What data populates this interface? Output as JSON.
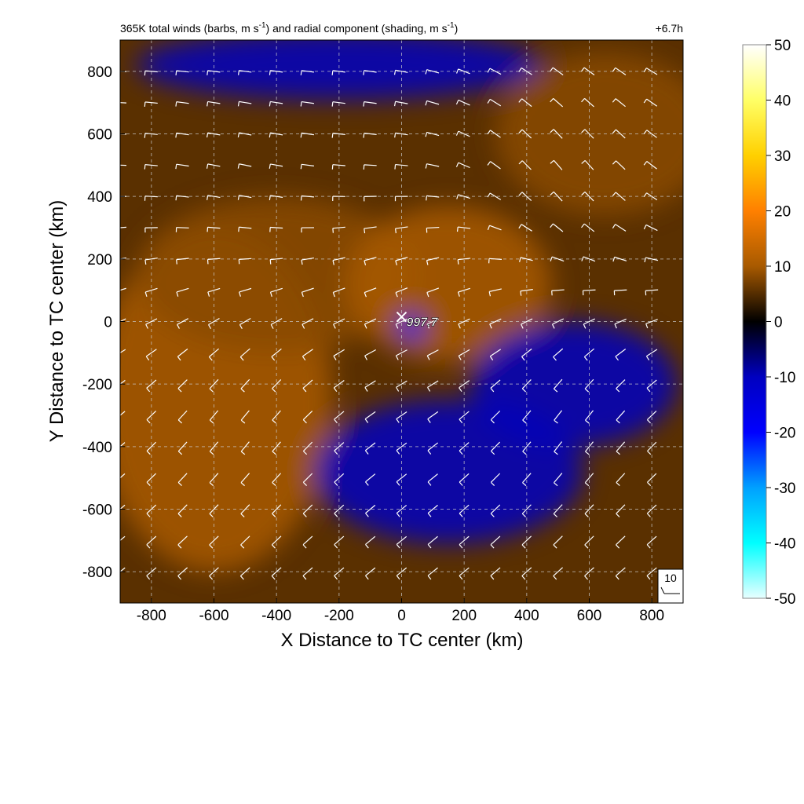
{
  "chart_data": {
    "type": "heatmap",
    "title_main": "365K total winds (barbs, m s",
    "title_unit_exp": "-1",
    "title_mid": ") and radial component (shading, m s",
    "title_end": ")",
    "time_label": "+6.7h",
    "xlabel": "X Distance to TC center (km)",
    "ylabel": "Y Distance to TC center (km)",
    "xlim": [
      -900,
      900
    ],
    "ylim": [
      -900,
      900
    ],
    "xticks": [
      -800,
      -600,
      -400,
      -200,
      0,
      200,
      400,
      600,
      800
    ],
    "yticks": [
      -800,
      -600,
      -400,
      -200,
      0,
      200,
      400,
      600,
      800
    ],
    "grid": true,
    "center_marker": {
      "x": 0,
      "y": 15,
      "label": "997.7"
    },
    "reference_barb": {
      "label": "10"
    },
    "colorbar": {
      "ticks": [
        50,
        40,
        30,
        20,
        10,
        0,
        -10,
        -20,
        -30,
        -40,
        -50
      ],
      "range": [
        -50,
        50
      ],
      "colors": {
        "c50": "#ffffff",
        "c40": "#ffff66",
        "c30": "#ffd000",
        "c20": "#ff8000",
        "c10": "#a85a00",
        "c0": "#000000",
        "cm10": "#0000c0",
        "cm20": "#0000ff",
        "cm30": "#00a0ff",
        "cm40": "#00ffff",
        "cm50": "#e8ffff"
      }
    },
    "radial_wind_regions": [
      {
        "name": "north-inflow",
        "x": -200,
        "y": 820,
        "rx": 650,
        "ry": 110,
        "value": -9
      },
      {
        "name": "east-outflow-upper",
        "x": 650,
        "y": 600,
        "rx": 350,
        "ry": 260,
        "value": 9
      },
      {
        "name": "west-outflow",
        "x": -600,
        "y": -250,
        "rx": 380,
        "ry": 550,
        "value": 10
      },
      {
        "name": "northwest-outflow",
        "x": -400,
        "y": 150,
        "rx": 450,
        "ry": 250,
        "value": 9
      },
      {
        "name": "inner-ring",
        "x": 150,
        "y": 120,
        "rx": 330,
        "ry": 250,
        "value": 10
      },
      {
        "name": "southeast-inflow",
        "x": 550,
        "y": -200,
        "rx": 330,
        "ry": 200,
        "value": -8
      },
      {
        "name": "south-inflow",
        "x": 150,
        "y": -480,
        "rx": 430,
        "ry": 230,
        "value": -9
      },
      {
        "name": "eye-inflow",
        "x": 30,
        "y": -20,
        "rx": 45,
        "ry": 45,
        "value": -10
      }
    ],
    "barb_grid": {
      "x_start": -900,
      "y_start": -800,
      "step": 100
    },
    "wind_flow_centers": [
      {
        "x": -500,
        "y": 450,
        "u": 14,
        "v": -4
      },
      {
        "x": 500,
        "y": 450,
        "u": 6,
        "v": -10
      },
      {
        "x": 500,
        "y": -300,
        "u": 6,
        "v": 10
      },
      {
        "x": -500,
        "y": -300,
        "u": 8,
        "v": 12
      },
      {
        "x": 0,
        "y": 0,
        "u": 8,
        "v": 4
      }
    ]
  }
}
